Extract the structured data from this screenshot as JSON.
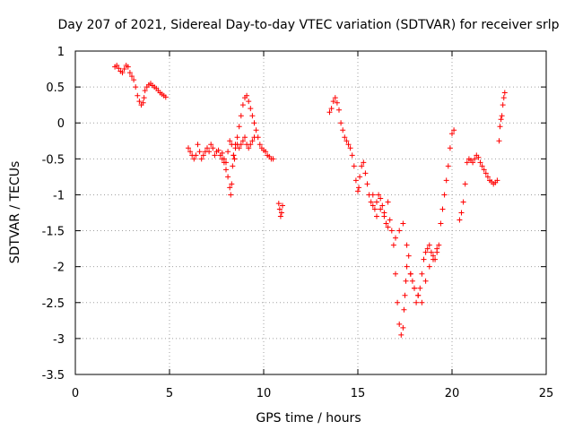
{
  "chart_data": {
    "type": "scatter",
    "title": "Day 207 of 2021, Sidereal Day-to-day VTEC variation (SDTVAR) for receiver srlp",
    "xlabel": "GPS time / hours",
    "ylabel": "SDTVAR / TECUs",
    "xlim": [
      0,
      25
    ],
    "ylim": [
      -3.5,
      1
    ],
    "x_ticks": [
      0,
      5,
      10,
      15,
      20,
      25
    ],
    "x_tick_labels": [
      "0",
      "5",
      "10",
      "15",
      "20",
      "25"
    ],
    "y_ticks": [
      1,
      0.5,
      0,
      -0.5,
      -1,
      -1.5,
      -2,
      -2.5,
      -3,
      -3.5
    ],
    "y_tick_labels": [
      "1",
      "0.5",
      "0",
      "-0.5",
      "-1",
      "-1.5",
      "-2",
      "-2.5",
      "-3",
      "-3.5"
    ],
    "grid": true,
    "legend": "none",
    "marker": "plus",
    "color": "#ff0000",
    "series": [
      {
        "x": [
          2.1,
          2.2,
          2.3,
          2.4,
          2.5,
          2.6,
          2.7,
          2.8,
          2.9,
          3.0,
          3.1,
          3.2,
          3.3,
          3.4,
          3.5,
          3.6,
          3.65,
          3.7,
          3.8,
          3.9,
          4.0,
          4.1,
          4.2,
          4.3,
          4.4,
          4.5,
          4.6,
          4.7,
          4.8,
          6.0,
          6.1,
          6.2,
          6.3,
          6.4,
          6.5,
          6.6,
          6.7,
          6.8,
          6.9,
          7.0,
          7.1,
          7.2,
          7.3,
          7.4,
          7.5,
          7.6,
          7.7,
          7.8,
          7.9,
          8.0,
          8.1,
          8.2,
          8.3,
          8.4,
          8.45,
          8.5,
          8.6,
          8.7,
          8.8,
          8.9,
          9.0,
          9.1,
          9.2,
          9.3,
          9.4,
          9.5,
          9.6,
          9.7,
          9.8,
          9.9,
          10.0,
          10.1,
          10.2,
          10.3,
          10.4,
          10.5,
          7.8,
          7.9,
          8.0,
          8.1,
          8.2,
          8.25,
          8.3,
          8.35,
          8.4,
          8.45,
          8.5,
          8.6,
          8.7,
          8.8,
          8.9,
          9.0,
          9.1,
          9.2,
          9.3,
          9.4,
          9.5,
          10.8,
          10.85,
          10.9,
          10.95,
          11.0,
          13.5,
          13.6,
          13.7,
          13.8,
          13.9,
          14.0,
          14.1,
          14.2,
          14.3,
          14.4,
          14.5,
          14.6,
          14.7,
          14.8,
          14.9,
          15.0,
          15.05,
          15.1,
          15.2,
          15.3,
          15.4,
          15.5,
          15.6,
          15.7,
          15.8,
          15.9,
          16.0,
          16.1,
          16.2,
          16.3,
          16.4,
          16.5,
          16.6,
          16.7,
          16.8,
          16.9,
          17.0,
          17.1,
          17.2,
          17.3,
          17.4,
          17.45,
          17.5,
          17.55,
          17.6,
          17.7,
          17.8,
          17.9,
          18.0,
          18.1,
          18.2,
          18.3,
          18.4,
          18.5,
          18.6,
          18.7,
          18.8,
          18.9,
          19.0,
          19.1,
          19.2,
          19.3,
          19.4,
          19.5,
          19.6,
          19.7,
          19.8,
          19.9,
          20.0,
          20.1,
          15.8,
          16.0,
          16.2,
          16.4,
          16.6,
          17.0,
          17.2,
          17.4,
          17.6,
          17.8,
          18.0,
          18.2,
          18.4,
          18.6,
          18.8,
          19.0,
          19.2,
          20.4,
          20.5,
          20.6,
          20.7,
          20.8,
          20.9,
          21.0,
          21.1,
          21.2,
          21.3,
          21.4,
          21.5,
          21.6,
          21.7,
          21.8,
          21.9,
          22.0,
          22.1,
          22.2,
          22.3,
          22.4,
          22.5,
          22.55,
          22.6,
          22.65,
          22.7,
          22.75,
          22.8
        ],
        "y": [
          0.78,
          0.8,
          0.76,
          0.72,
          0.7,
          0.75,
          0.8,
          0.78,
          0.7,
          0.65,
          0.6,
          0.5,
          0.38,
          0.3,
          0.25,
          0.28,
          0.35,
          0.45,
          0.5,
          0.53,
          0.55,
          0.52,
          0.5,
          0.48,
          0.45,
          0.42,
          0.4,
          0.38,
          0.36,
          -0.35,
          -0.4,
          -0.45,
          -0.5,
          -0.45,
          -0.3,
          -0.4,
          -0.5,
          -0.45,
          -0.4,
          -0.35,
          -0.4,
          -0.3,
          -0.35,
          -0.45,
          -0.4,
          -0.38,
          -0.45,
          -0.42,
          -0.5,
          -0.55,
          -0.4,
          -0.25,
          -0.3,
          -0.45,
          -0.5,
          -0.3,
          -0.2,
          -0.05,
          0.1,
          0.25,
          0.35,
          0.38,
          0.3,
          0.2,
          0.1,
          0.0,
          -0.1,
          -0.2,
          -0.3,
          -0.35,
          -0.38,
          -0.4,
          -0.45,
          -0.47,
          -0.5,
          -0.5,
          -0.5,
          -0.55,
          -0.65,
          -0.75,
          -0.9,
          -1.0,
          -0.85,
          -0.6,
          -0.45,
          -0.5,
          -0.35,
          -0.3,
          -0.35,
          -0.3,
          -0.25,
          -0.2,
          -0.3,
          -0.35,
          -0.3,
          -0.25,
          -0.2,
          -1.12,
          -1.2,
          -1.3,
          -1.25,
          -1.15,
          0.15,
          0.2,
          0.3,
          0.35,
          0.28,
          0.18,
          0.0,
          -0.1,
          -0.2,
          -0.25,
          -0.3,
          -0.35,
          -0.45,
          -0.6,
          -0.8,
          -0.95,
          -0.9,
          -0.75,
          -0.6,
          -0.55,
          -0.7,
          -0.85,
          -1.0,
          -1.1,
          -1.15,
          -1.2,
          -1.1,
          -1.0,
          -1.05,
          -1.15,
          -1.3,
          -1.4,
          -1.45,
          -1.35,
          -1.5,
          -1.7,
          -2.1,
          -2.5,
          -2.8,
          -2.95,
          -2.85,
          -2.6,
          -2.4,
          -2.2,
          -2.0,
          -1.85,
          -2.1,
          -2.2,
          -2.3,
          -2.5,
          -2.4,
          -2.3,
          -2.1,
          -1.9,
          -1.8,
          -1.75,
          -1.7,
          -1.8,
          -1.85,
          -1.9,
          -1.8,
          -1.7,
          -1.4,
          -1.2,
          -1.0,
          -0.8,
          -0.6,
          -0.35,
          -0.15,
          -0.1,
          -1.0,
          -1.3,
          -1.2,
          -1.25,
          -1.1,
          -1.6,
          -1.5,
          -1.4,
          -1.7,
          -2.1,
          -2.3,
          -2.4,
          -2.5,
          -2.2,
          -2.0,
          -1.9,
          -1.75,
          -1.35,
          -1.25,
          -1.1,
          -0.85,
          -0.55,
          -0.5,
          -0.52,
          -0.55,
          -0.5,
          -0.45,
          -0.48,
          -0.55,
          -0.6,
          -0.65,
          -0.7,
          -0.75,
          -0.8,
          -0.82,
          -0.85,
          -0.83,
          -0.8,
          -0.25,
          -0.05,
          0.05,
          0.1,
          0.25,
          0.35,
          0.42
        ]
      }
    ]
  }
}
